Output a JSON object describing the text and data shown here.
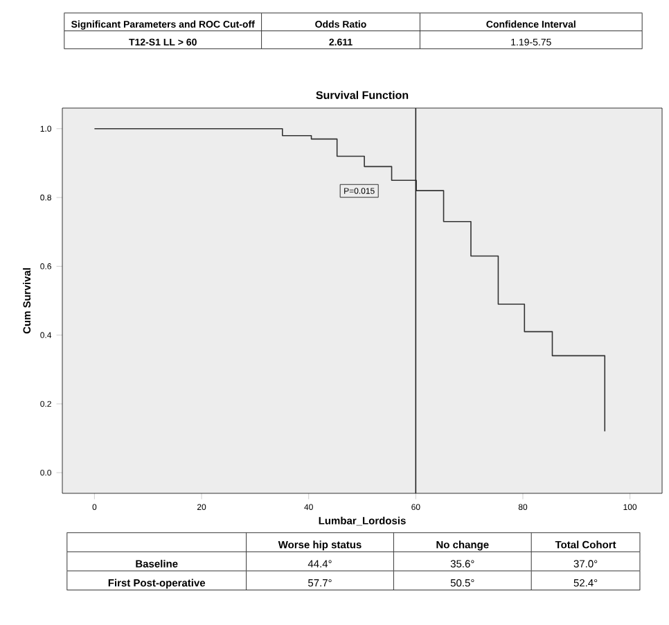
{
  "chart_data": {
    "type": "step",
    "title": "Survival Function",
    "xlabel": "Lumbar_Lordosis",
    "ylabel": "Cum Survival",
    "series": [
      {
        "color": "#333333",
        "x": [
          0,
          35.1,
          40.5,
          45.3,
          50.4,
          55.5,
          60.1,
          65.2,
          70.3,
          75.4,
          80.3,
          85.5,
          95.3
        ],
        "values": [
          1.0,
          0.98,
          0.97,
          0.92,
          0.89,
          0.85,
          0.82,
          0.73,
          0.63,
          0.49,
          0.41,
          0.34,
          0.12
        ]
      }
    ],
    "xlim": [
      -6,
      106
    ],
    "ylim": [
      -0.06,
      1.06
    ],
    "xticks": [
      0,
      20,
      40,
      60,
      80,
      100
    ],
    "yticks": [
      {
        "value": 0,
        "label": "0.0"
      },
      {
        "value": 0.2,
        "label": "0.2"
      },
      {
        "value": 0.4,
        "label": "0.4"
      },
      {
        "value": 0.6,
        "label": "0.6"
      },
      {
        "value": 0.8,
        "label": "0.8"
      },
      {
        "value": 1.0,
        "label": "1.0"
      }
    ],
    "ref_lines": [
      {
        "axis": "x",
        "value": 60,
        "color": "#222222"
      }
    ],
    "grid": false,
    "annotations": [
      "Significant Parameters and ROC Cut-off",
      "Odds Ratio",
      "Confidence Interval",
      "T12-S1 LL > 60",
      "2.611",
      "1.19-5.75",
      "P=0.015",
      "Worse hip status",
      "No change",
      "Total Cohort",
      "Baseline",
      "44.4°",
      "35.6°",
      "37.0°",
      "First Post-operative",
      "57.7°",
      "50.5°",
      "52.4°"
    ]
  }
}
